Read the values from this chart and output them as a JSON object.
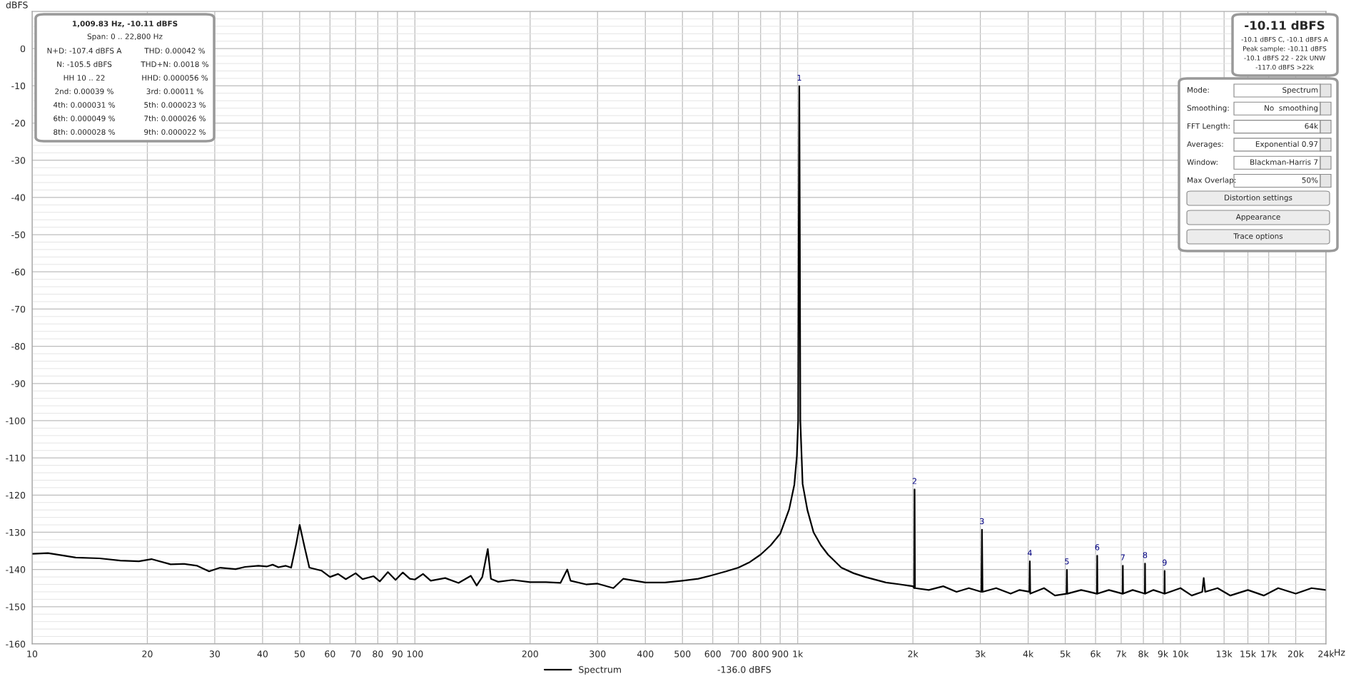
{
  "chart_data": {
    "type": "line",
    "ylabel": "dBFS",
    "xlim": [
      10,
      24000
    ],
    "ylim": [
      -160,
      10
    ],
    "log": "x",
    "grid": true,
    "legend": "bottom",
    "marker": "none",
    "line_style": "solid",
    "xticks": [
      10,
      20,
      30,
      40,
      50,
      60,
      70,
      80,
      90,
      100,
      200,
      300,
      400,
      500,
      600,
      700,
      800,
      900,
      {
        "value": 1000,
        "label": "1k"
      },
      {
        "value": 2000,
        "label": "2k"
      },
      {
        "value": 3000,
        "label": "3k"
      },
      {
        "value": 4000,
        "label": "4k"
      },
      {
        "value": 5000,
        "label": "5k"
      },
      {
        "value": 6000,
        "label": "6k"
      },
      {
        "value": 7000,
        "label": "7k"
      },
      {
        "value": 8000,
        "label": "8k"
      },
      {
        "value": 9000,
        "label": "9k"
      },
      {
        "value": 10000,
        "label": "10k"
      },
      {
        "value": 13000,
        "label": "13k"
      },
      {
        "value": 15000,
        "label": "15k"
      },
      {
        "value": 17000,
        "label": "17k"
      },
      {
        "value": 20000,
        "label": "20k"
      },
      {
        "value": 24000,
        "label": "24k"
      }
    ],
    "xlabel": "Hz",
    "yticks": [
      0,
      -10,
      -20,
      -30,
      -40,
      -50,
      -60,
      -70,
      -80,
      -90,
      -100,
      -110,
      -120,
      -130,
      -140,
      -150,
      -160
    ],
    "series": [
      {
        "name": "Spectrum",
        "color": "#000000",
        "x": [
          10,
          11,
          13,
          15,
          17,
          19,
          20.5,
          23,
          25,
          27,
          29,
          31,
          34,
          36,
          39,
          41,
          42.5,
          44,
          46,
          47.5,
          49,
          50,
          51.5,
          53,
          57,
          60,
          63,
          66,
          70,
          73,
          78,
          81,
          85,
          89,
          93,
          97,
          100,
          105,
          110,
          120,
          130,
          140,
          145,
          150,
          155,
          158,
          165,
          180,
          200,
          220,
          240,
          250,
          255,
          280,
          300,
          330,
          350,
          400,
          450,
          500,
          550,
          590,
          650,
          700,
          750,
          800,
          850,
          900,
          950,
          980,
          995,
          1003,
          1006,
          1009.83,
          1013,
          1016,
          1030,
          1060,
          1100,
          1150,
          1200,
          1300,
          1400,
          1500,
          1700,
          1850,
          2000,
          2015,
          2020,
          2025,
          2200,
          2400,
          2600,
          2800,
          3020,
          3030,
          3040,
          3300,
          3600,
          3800,
          4030,
          4040,
          4050,
          4400,
          4700,
          5040,
          5050,
          5060,
          5500,
          6050,
          6060,
          6070,
          6500,
          7060,
          7070,
          7080,
          7500,
          8070,
          8080,
          8090,
          8500,
          9080,
          9090,
          9100,
          10000,
          10700,
          11400,
          11500,
          11600,
          12500,
          13500,
          15000,
          16500,
          18000,
          20000,
          22000,
          24000
        ],
        "values": [
          -135.8,
          -135.6,
          -136.8,
          -137.0,
          -137.6,
          -137.8,
          -137.2,
          -138.6,
          -138.5,
          -139.0,
          -140.5,
          -139.5,
          -139.9,
          -139.3,
          -139.0,
          -139.2,
          -138.7,
          -139.4,
          -139.0,
          -139.5,
          -133,
          -128.0,
          -134,
          -139.5,
          -140.3,
          -142.0,
          -141.2,
          -142.6,
          -141.0,
          -142.6,
          -141.8,
          -143.2,
          -140.7,
          -142.8,
          -140.8,
          -142.5,
          -142.7,
          -141.2,
          -143.0,
          -142.3,
          -143.6,
          -141.7,
          -144.3,
          -142,
          -134.5,
          -142.5,
          -143.3,
          -142.8,
          -143.4,
          -143.4,
          -143.6,
          -140,
          -143,
          -144,
          -143.8,
          -145,
          -142.5,
          -143.5,
          -143.5,
          -143,
          -142.5,
          -141.7,
          -140.5,
          -139.5,
          -138,
          -136.0,
          -133.5,
          -130.4,
          -123.8,
          -117.2,
          -109.5,
          -100,
          -50,
          -10.1,
          -50,
          -100,
          -117,
          -124,
          -130,
          -133.5,
          -136,
          -139.5,
          -141,
          -142,
          -143.5,
          -144,
          -144.5,
          -145,
          -118.5,
          -145,
          -145.5,
          -144.5,
          -146,
          -145,
          -146,
          -129.3,
          -146,
          -145,
          -146.5,
          -145.5,
          -146,
          -137.8,
          -146.5,
          -145,
          -147,
          -146.5,
          -140.1,
          -146.5,
          -145.5,
          -146.5,
          -136.3,
          -146.5,
          -145.5,
          -146.5,
          -139.0,
          -146.5,
          -145.5,
          -146.5,
          -138.4,
          -146.5,
          -145.5,
          -146.5,
          -140.4,
          -146.5,
          -145,
          -147,
          -146,
          -142.3,
          -146,
          -145,
          -147,
          -145.5,
          -147,
          -145,
          -146.5,
          -145,
          -145.5
        ]
      }
    ],
    "annotations": [
      "1,009.83 Hz, -10.11 dBFS",
      "Span: 0 .. 22,800 Hz",
      "N+D: -107.4 dBFS A",
      "THD: 0.00042 %",
      "N: -105.5 dBFS",
      "THD+N: 0.0018 %",
      "HH 10 .. 22",
      "HHD: 0.000056 %",
      "2nd: 0.00039 %",
      "3rd: 0.00011 %",
      "4th: 0.000031 %",
      "5th: 0.000023 %",
      "6th: 0.000049 %",
      "7th: 0.000026 %",
      "8th: 0.000028 %",
      "9th: 0.000022 %",
      "-10.11 dBFS",
      "-10.1 dBFS C, -10.1 dBFS A",
      "Peak sample: -10.11 dBFS",
      "-10.1 dBFS 22 - 22k UNW",
      "-117.0 dBFS >22k",
      "Mode:",
      "Spectrum",
      "Smoothing:",
      "No  smoothing",
      "FFT Length:",
      "64k",
      "Averages:",
      "Exponential 0.97",
      "Window:",
      "Blackman-Harris 7",
      "Max Overlap:",
      "50%",
      "Distortion settings",
      "Appearance",
      "Trace options",
      "-136.0 dBFS",
      {
        "text": "1",
        "x": 1009.83,
        "y": -10.1
      },
      {
        "text": "2",
        "x": 2020,
        "y": -118.5
      },
      {
        "text": "3",
        "x": 3030,
        "y": -129.3
      },
      {
        "text": "4",
        "x": 4040,
        "y": -137.8
      },
      {
        "text": "5",
        "x": 5050,
        "y": -140.1
      },
      {
        "text": "6",
        "x": 6060,
        "y": -136.3
      },
      {
        "text": "7",
        "x": 7070,
        "y": -139.0
      },
      {
        "text": "8",
        "x": 8080,
        "y": -138.4
      },
      {
        "text": "9",
        "x": 9090,
        "y": -140.4
      }
    ]
  }
}
